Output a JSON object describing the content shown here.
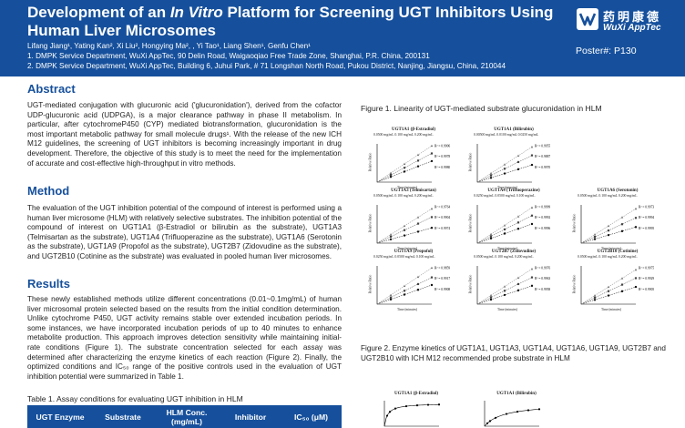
{
  "header": {
    "title_pre": "Development of an ",
    "title_italic": "In Vitro",
    "title_post": " Platform for Screening UGT Inhibitors Using Human Liver Microsomes",
    "authors": "Lifang Jiang¹, Yating Kan², Xi Liu², Hongying Ma², , Yi Tao¹, Liang Shen¹, Genfu Chen¹",
    "affiliation_1": "1. DMPK Service Department, WuXi AppTec, 90 Delin Road, Waigaoqiao Free Trade Zone, Shanghai, P.R. China, 200131",
    "affiliation_2": "2. DMPK Service Department, WuXi AppTec, Building 6, Juhui Park, # 71 Longshan North Road, Pukou District, Nanjing, Jiangsu, China, 210044",
    "logo_cn": "药明康德",
    "logo_en": "WuXi AppTec",
    "poster_number": "Poster#: P130",
    "brand_color": "#16509c"
  },
  "abstract": {
    "heading": "Abstract",
    "text": "UGT-mediated conjugation with glucuronic acid ('glucuronidation'), derived from the cofactor UDP-glucuronic acid (UDPGA), is a major clearance pathway in phase II metabolism. In particular, after cytochromeP450 (CYP) mediated biotransformation, glucuronidation is the most important metabolic pathway for small molecule drugs¹. With the release of the new ICH M12 guidelines, the screening of UGT inhibitors is becoming increasingly important in drug development. Therefore, the objective of this study is to meet the need for the implementation of accurate and cost-effective high-throughput in vitro methods."
  },
  "method": {
    "heading": "Method",
    "text": "The evaluation of the UGT inhibition potential of the compound of interest is performed using a human liver microsome (HLM) with relatively selective substrates. The inhibition potential of the compound of interest on UGT1A1 (β-Estradiol or bilirubin as the substrate), UGT1A3 (Telmisartan as the substrate), UGT1A4 (Trifluoperazine as the substrate), UGT1A6 (Serotonin as the substrate), UGT1A9 (Propofol as the substrate), UGT2B7 (Zidovudine as the substrate), and UGT2B10 (Cotinine as the substrate) was evaluated in pooled human liver microsomes."
  },
  "results": {
    "heading": "Results",
    "text": "These newly established methods utilize different concentrations (0.01~0.1mg/mL) of human liver microsomal protein selected based on the results from the initial condition determination. Unlike cytochrome P450, UGT activity remains stable over extended incubation periods. In some instances, we have incorporated incubation periods of up to 40 minutes to enhance metabolite production. This approach improves detection sensitivity while maintaining initial-rate conditions (Figure 1). The substrate concentration selected for each assay was determined after characterizing the enzyme kinetics of each reaction (Figure 2). Finally, the optimized conditions and IC₅₀ range of the positive controls used in the evaluation of UGT inhibition potential were summarized in Table 1."
  },
  "table": {
    "caption": "Table 1. Assay conditions for evaluating UGT inhibition in HLM",
    "columns": [
      "UGT Enzyme",
      "Substrate",
      "HLM Conc. (mg/mL)",
      "Inhibitor",
      "IC₅₀ (μM)"
    ]
  },
  "figure1": {
    "caption": "Figure 1. Linearity of UGT-mediated substrate glucuronidation in HLM",
    "x_label": "Time (minutes)",
    "y_label": "Relative Ratio",
    "panels": [
      {
        "title": "UGT1A1 (β-Estradiol)",
        "legend": "0.0500 mg/mL  0.100 mg/mL  0.200 mg/mL",
        "r2": [
          "R² = 0.9906",
          "R² = 0.9978",
          "R² = 0.9980"
        ],
        "slopes": [
          0.55,
          0.75,
          0.95
        ]
      },
      {
        "title": "UGT1A1 (Bilirubin)",
        "legend": "0.00500 mg/mL  0.0100 mg/mL  0.0250 mg/mL",
        "r2": [
          "R² = 0.9955",
          "R² = 0.9887",
          "R² = 0.9970"
        ],
        "slopes": [
          0.45,
          0.7,
          0.92
        ]
      },
      {
        "title": "UGT1A3 (Telmisartan)",
        "legend": "0.0500 mg/mL  0.100 mg/mL  0.200 mg/mL",
        "r2": [
          "R² = 0.9764",
          "R² = 0.9904",
          "R² = 0.9974"
        ],
        "slopes": [
          0.4,
          0.68,
          0.9
        ]
      },
      {
        "title": "UGT1A4 (Trifluoperazine)",
        "legend": "0.0250 mg/mL  0.0500 mg/mL  0.100 mg/mL",
        "r2": [
          "R² = 0.9999",
          "R² = 0.9992",
          "R² = 0.9996"
        ],
        "slopes": [
          0.5,
          0.72,
          0.93
        ]
      },
      {
        "title": "UGT1A6 (Serotonin)",
        "legend": "0.0500 mg/mL  0.100 mg/mL  0.200 mg/mL",
        "r2": [
          "R² = 0.9973",
          "R² = 0.9994",
          "R² = 0.9995"
        ],
        "slopes": [
          0.42,
          0.66,
          0.9
        ]
      },
      {
        "title": "UGT1A9 (Propofol)",
        "legend": "0.0250 mg/mL  0.0500 mg/mL  0.100 mg/mL",
        "r2": [
          "R² = 0.9859",
          "R² = 0.9917",
          "R² = 0.9908"
        ],
        "slopes": [
          0.5,
          0.7,
          0.95
        ]
      },
      {
        "title": "UGT2B7 (Zidovudine)",
        "legend": "0.0500 mg/mL  0.100 mg/mL  0.200 mg/mL",
        "r2": [
          "R² = 0.9976",
          "R² = 0.9963",
          "R² = 0.9958"
        ],
        "slopes": [
          0.48,
          0.7,
          0.92
        ]
      },
      {
        "title": "UGT2B10 (Cotinine)",
        "legend": "0.0500 mg/mL  0.100 mg/mL  0.200 mg/mL",
        "r2": [
          "R² = 0.9975",
          "R² = 0.9929",
          "R² = 0.9905"
        ],
        "slopes": [
          0.45,
          0.68,
          0.9
        ]
      }
    ]
  },
  "figure2": {
    "caption": "Figure 2. Enzyme kinetics of UGT1A1, UGT1A3, UGT1A4, UGT1A6, UGT1A9, UGT2B7 and UGT2B10 with ICH M12 recommended probe substrate in HLM",
    "panels": [
      {
        "title": "UGT1A1 (β-Estradiol)"
      },
      {
        "title": "UGT1A1 (Bilirubin)"
      }
    ]
  },
  "series_colors": [
    "#111111",
    "#444444",
    "#777777"
  ]
}
